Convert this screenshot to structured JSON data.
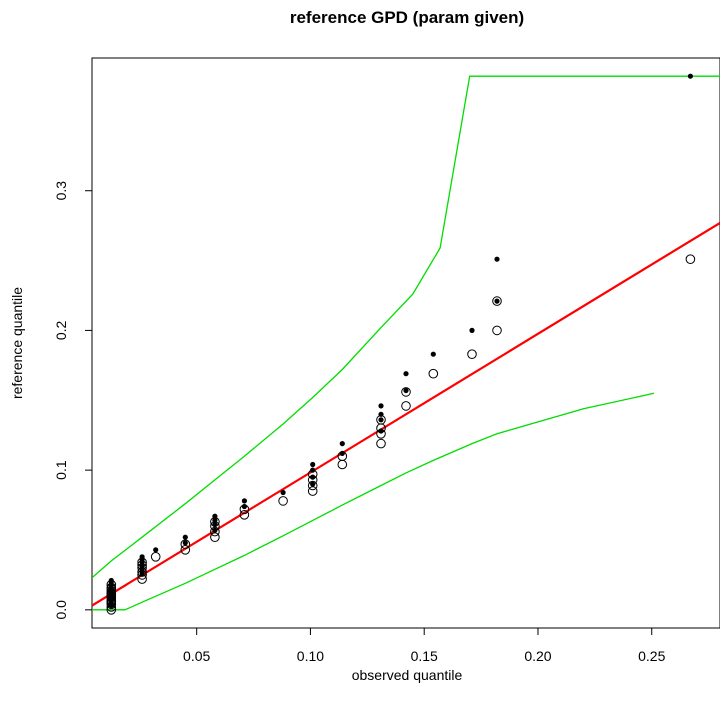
{
  "chart_data": {
    "type": "scatter",
    "title": "reference GPD (param given)",
    "xlabel": "observed quantile",
    "ylabel": "reference quantile",
    "xlim": [
      0.004,
      0.28
    ],
    "ylim": [
      -0.013,
      0.395
    ],
    "x_ticks": [
      0.05,
      0.1,
      0.15,
      0.2,
      0.25
    ],
    "x_tick_labels": [
      "0.05",
      "0.10",
      "0.15",
      "0.20",
      "0.25"
    ],
    "y_ticks": [
      0.0,
      0.1,
      0.2,
      0.3
    ],
    "y_tick_labels": [
      "0.0",
      "0.1",
      "0.2",
      "0.3"
    ],
    "grid": false,
    "legend": "none",
    "colors": {
      "reference_line": "#ff0000",
      "envelope": "#00dd00",
      "points": "#000000"
    },
    "series": [
      {
        "style": "open-circle",
        "x": [
          0.0125,
          0.0125,
          0.0125,
          0.0125,
          0.0125,
          0.0125,
          0.0125,
          0.0125,
          0.0125,
          0.0125,
          0.0125,
          0.0125,
          0.0125,
          0.0125,
          0.026,
          0.026,
          0.026,
          0.026,
          0.026,
          0.026,
          0.032,
          0.045,
          0.045,
          0.058,
          0.058,
          0.058,
          0.058,
          0.071,
          0.071,
          0.088,
          0.101,
          0.101,
          0.101,
          0.101,
          0.114,
          0.114,
          0.131,
          0.131,
          0.131,
          0.131,
          0.142,
          0.142,
          0.154,
          0.171,
          0.182,
          0.182,
          0.267
        ],
        "y": [
          0.0,
          0.002,
          0.004,
          0.005,
          0.006,
          0.007,
          0.009,
          0.01,
          0.011,
          0.012,
          0.013,
          0.015,
          0.016,
          0.018,
          0.022,
          0.025,
          0.027,
          0.03,
          0.032,
          0.034,
          0.038,
          0.043,
          0.047,
          0.052,
          0.056,
          0.06,
          0.063,
          0.068,
          0.072,
          0.078,
          0.085,
          0.089,
          0.093,
          0.097,
          0.104,
          0.11,
          0.119,
          0.126,
          0.13,
          0.136,
          0.146,
          0.156,
          0.169,
          0.183,
          0.2,
          0.221,
          0.251
        ]
      },
      {
        "style": "filled-dot",
        "x": [
          0.0125,
          0.0125,
          0.0125,
          0.0125,
          0.0125,
          0.0125,
          0.0125,
          0.0125,
          0.0125,
          0.0125,
          0.0125,
          0.0125,
          0.0125,
          0.0125,
          0.026,
          0.026,
          0.026,
          0.026,
          0.026,
          0.026,
          0.032,
          0.045,
          0.045,
          0.058,
          0.058,
          0.058,
          0.058,
          0.071,
          0.071,
          0.088,
          0.101,
          0.101,
          0.101,
          0.101,
          0.114,
          0.114,
          0.131,
          0.131,
          0.131,
          0.131,
          0.142,
          0.142,
          0.154,
          0.171,
          0.182,
          0.182,
          0.267
        ],
        "y": [
          0.003,
          0.005,
          0.007,
          0.008,
          0.009,
          0.01,
          0.012,
          0.013,
          0.014,
          0.015,
          0.016,
          0.018,
          0.02,
          0.021,
          0.026,
          0.029,
          0.031,
          0.034,
          0.036,
          0.038,
          0.043,
          0.048,
          0.052,
          0.057,
          0.061,
          0.064,
          0.067,
          0.074,
          0.078,
          0.084,
          0.09,
          0.095,
          0.1,
          0.104,
          0.112,
          0.119,
          0.128,
          0.136,
          0.14,
          0.146,
          0.157,
          0.169,
          0.183,
          0.2,
          0.221,
          0.251,
          0.382
        ]
      },
      {
        "style": "line",
        "role": "reference",
        "x": [
          0.004,
          0.28
        ],
        "y": [
          0.003,
          0.277
        ]
      },
      {
        "style": "line",
        "role": "upper-envelope",
        "x": [
          0.004,
          0.0125,
          0.026,
          0.045,
          0.058,
          0.071,
          0.088,
          0.101,
          0.114,
          0.131,
          0.145,
          0.157,
          0.17,
          0.182,
          0.28
        ],
        "y": [
          0.023,
          0.035,
          0.052,
          0.076,
          0.093,
          0.11,
          0.133,
          0.152,
          0.172,
          0.202,
          0.226,
          0.259,
          0.382,
          0.382,
          0.382
        ]
      },
      {
        "style": "line",
        "role": "lower-envelope",
        "x": [
          0.004,
          0.0185,
          0.026,
          0.045,
          0.058,
          0.071,
          0.088,
          0.101,
          0.114,
          0.131,
          0.142,
          0.154,
          0.171,
          0.182,
          0.22,
          0.251
        ],
        "y": [
          0.0,
          0.0,
          0.0055,
          0.019,
          0.029,
          0.039,
          0.053,
          0.064,
          0.075,
          0.089,
          0.098,
          0.107,
          0.119,
          0.126,
          0.144,
          0.155
        ]
      }
    ]
  }
}
